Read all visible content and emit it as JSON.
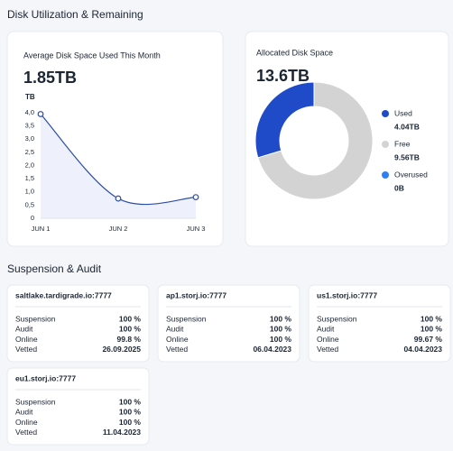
{
  "header": {
    "title": "Disk Utilization & Remaining"
  },
  "chart_data": [
    {
      "type": "line",
      "title": "Average Disk Space Used This Month",
      "headline": "1.85TB",
      "y_label": "TB",
      "categories": [
        "JUN 1",
        "JUN 2",
        "JUN 3"
      ],
      "values": [
        3.95,
        0.75,
        0.8
      ],
      "color": "#2b4ea8",
      "fill": "#eef1fb",
      "ylim": [
        0,
        4
      ],
      "yticks": [
        0,
        {
          "value": 0.5,
          "label": "0,5"
        },
        {
          "value": 1,
          "label": "1,0"
        },
        {
          "value": 1.5,
          "label": "1,5"
        },
        {
          "value": 2,
          "label": "2,0"
        },
        {
          "value": 2.5,
          "label": "2,5"
        },
        {
          "value": 3,
          "label": "3,0"
        },
        {
          "value": 3.5,
          "label": "3,5"
        },
        {
          "value": 4,
          "label": "4,0"
        }
      ],
      "grid": false
    },
    {
      "type": "pie",
      "title": "Allocated Disk Space",
      "headline": "13.6TB",
      "categories": [
        "Used",
        "Free",
        "Overused"
      ],
      "values": [
        4.04,
        9.56,
        0
      ],
      "value_labels": [
        "4.04TB",
        "9.56TB",
        "0B"
      ],
      "colors": [
        "#1f4bc9",
        "#d3d3d3",
        "#2f7ef3"
      ]
    }
  ],
  "section": {
    "title": "Suspension & Audit"
  },
  "nodes": [
    {
      "name": "saltlake.tardigrade.io:7777",
      "rows": [
        [
          "Suspension",
          "100 %"
        ],
        [
          "Audit",
          "100 %"
        ],
        [
          "Online",
          "99.8 %"
        ],
        [
          "Vetted",
          "26.09.2025"
        ]
      ]
    },
    {
      "name": "ap1.storj.io:7777",
      "rows": [
        [
          "Suspension",
          "100 %"
        ],
        [
          "Audit",
          "100 %"
        ],
        [
          "Online",
          "100 %"
        ],
        [
          "Vetted",
          "06.04.2023"
        ]
      ]
    },
    {
      "name": "us1.storj.io:7777",
      "rows": [
        [
          "Suspension",
          "100 %"
        ],
        [
          "Audit",
          "100 %"
        ],
        [
          "Online",
          "99.67 %"
        ],
        [
          "Vetted",
          "04.04.2023"
        ]
      ]
    },
    {
      "name": "eu1.storj.io:7777",
      "rows": [
        [
          "Suspension",
          "100 %"
        ],
        [
          "Audit",
          "100 %"
        ],
        [
          "Online",
          "100 %"
        ],
        [
          "Vetted",
          "11.04.2023"
        ]
      ]
    }
  ]
}
